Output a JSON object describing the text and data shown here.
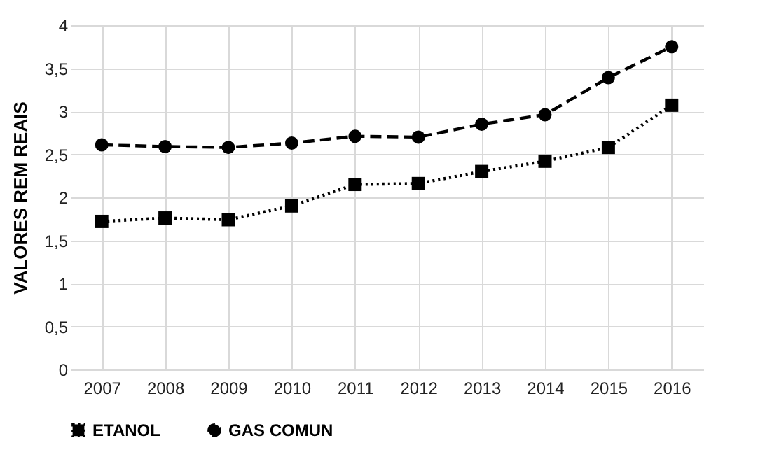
{
  "chart_data": {
    "type": "line",
    "ylabel": "VALORES REM REAIS",
    "categories": [
      "2007",
      "2008",
      "2009",
      "2010",
      "2011",
      "2012",
      "2013",
      "2014",
      "2015",
      "2016"
    ],
    "series": [
      {
        "name": "ETANOL",
        "color": "#000000",
        "marker": "square",
        "line_style": "dotted",
        "values": [
          1.72,
          1.76,
          1.74,
          1.9,
          2.15,
          2.16,
          2.3,
          2.42,
          2.58,
          3.07
        ]
      },
      {
        "name": "GAS COMUN",
        "color": "#000000",
        "marker": "circle",
        "line_style": "dashed",
        "values": [
          2.61,
          2.59,
          2.58,
          2.63,
          2.71,
          2.7,
          2.85,
          2.96,
          3.39,
          3.75
        ]
      }
    ],
    "ylim": [
      0,
      4
    ],
    "yticks": [
      0,
      {
        "value": 0.5,
        "label": "0,5"
      },
      1,
      {
        "value": 1.5,
        "label": "1,5"
      },
      2,
      {
        "value": 2.5,
        "label": "2,5"
      },
      3,
      {
        "value": 3.5,
        "label": "3,5"
      },
      4
    ],
    "grid": true,
    "legend": "bottom"
  }
}
